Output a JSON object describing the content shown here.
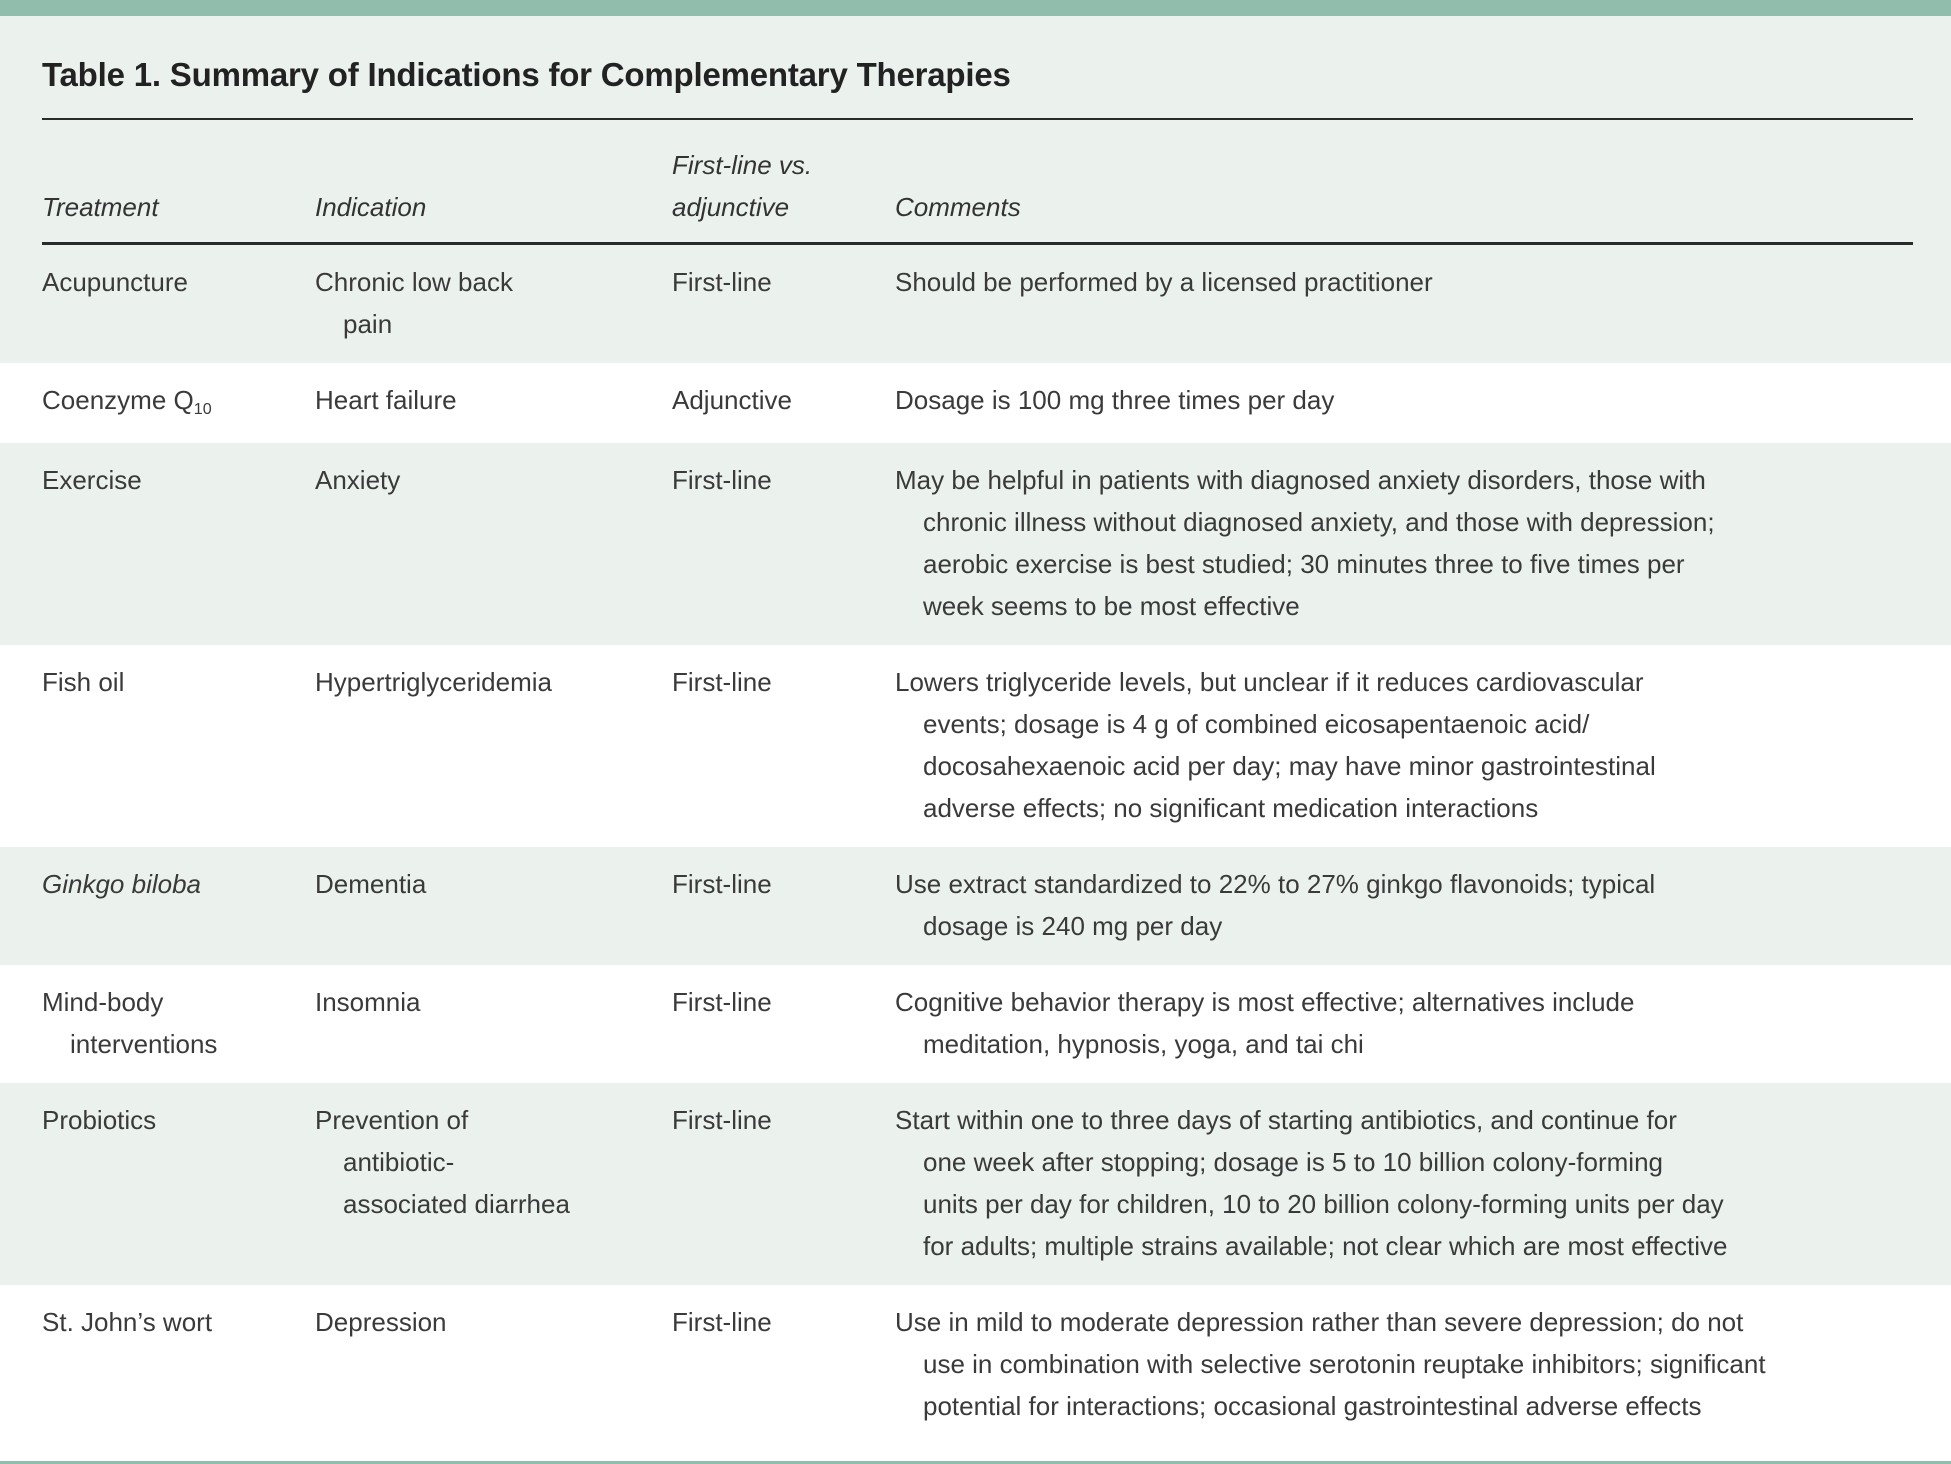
{
  "title": "Table 1. Summary of Indications for Complementary Therapies",
  "colors": {
    "accent_bar": "#91bdac",
    "row_tint": "#ebf1ec",
    "text": "#3a3a3a",
    "rule": "#2b2b2b"
  },
  "table": {
    "columns": [
      {
        "label": "Treatment"
      },
      {
        "label": "Indication"
      },
      {
        "label": "First-line vs.\nadjunctive"
      },
      {
        "label": "Comments"
      }
    ],
    "rows": [
      {
        "treatment": "Acupuncture",
        "indication": "Chronic low back\npain",
        "line": "First-line",
        "comments": "Should be performed by a licensed practitioner"
      },
      {
        "treatment": "Coenzyme Q",
        "treatment_sub": "10",
        "indication": "Heart failure",
        "line": "Adjunctive",
        "comments": "Dosage is 100 mg three times per day"
      },
      {
        "treatment": "Exercise",
        "indication": "Anxiety",
        "line": "First-line",
        "comments": "May be helpful in patients with diagnosed anxiety disorders, those with\nchronic illness without diagnosed anxiety, and those with depression;\naerobic exercise is best studied; 30 minutes three to five times per\nweek seems to be most effective"
      },
      {
        "treatment": "Fish oil",
        "indication": "Hypertriglyceridemia",
        "line": "First-line",
        "comments": "Lowers triglyceride levels, but unclear if it reduces cardiovascular\nevents; dosage is 4 g of combined eicosapentaenoic acid/\ndocosahexaenoic acid per day; may have minor gastrointestinal\nadverse effects; no significant medication interactions"
      },
      {
        "treatment": "Ginkgo biloba",
        "treatment_italic": true,
        "indication": "Dementia",
        "line": "First-line",
        "comments": "Use extract standardized to 22% to 27% ginkgo flavonoids; typical\ndosage is 240 mg per day"
      },
      {
        "treatment": "Mind-body\ninterventions",
        "indication": "Insomnia",
        "line": "First-line",
        "comments": "Cognitive behavior therapy is most effective; alternatives include\nmeditation, hypnosis, yoga, and tai chi"
      },
      {
        "treatment": "Probiotics",
        "indication": "Prevention of\nantibiotic-\nassociated diarrhea",
        "line": "First-line",
        "comments": "Start within one to three days of starting antibiotics, and continue for\none week after stopping; dosage is 5 to 10 billion colony-forming\nunits per day for children, 10 to 20 billion colony-forming units per day\nfor adults; multiple strains available; not clear which are most effective"
      },
      {
        "treatment": "St. John’s wort",
        "indication": "Depression",
        "line": "First-line",
        "comments": "Use in mild to moderate depression rather than severe depression; do not\nuse in combination with selective serotonin reuptake inhibitors; significant\npotential for interactions; occasional gastrointestinal adverse effects"
      }
    ]
  }
}
